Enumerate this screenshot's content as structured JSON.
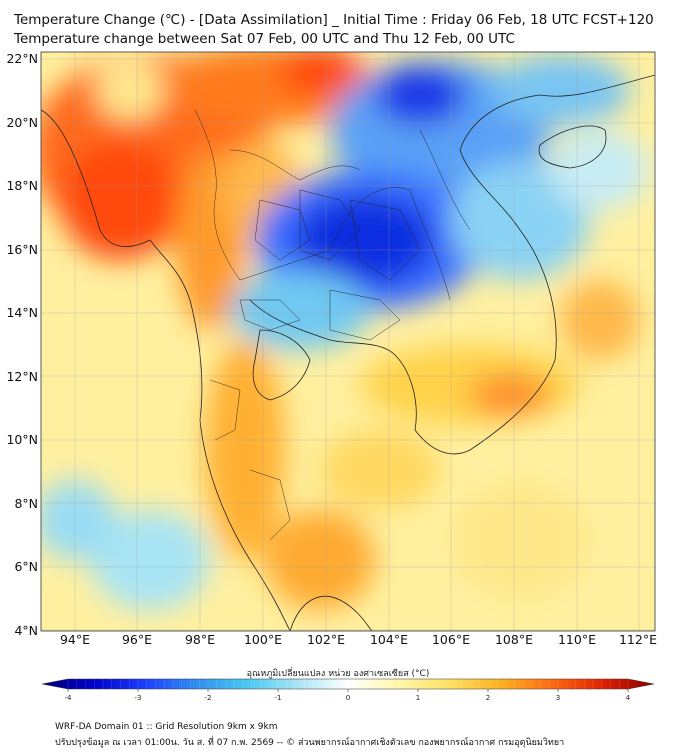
{
  "title_line1": "Temperature Change (℃) - [Data Assimilation] _ Initial Time : Friday 06 Feb, 18 UTC FCST+120",
  "title_line2": "Temperature change between Sat 07 Feb, 00 UTC and Thu 12 Feb, 00 UTC",
  "lat_labels": [
    "4°N",
    "6°N",
    "8°N",
    "10°N",
    "12°N",
    "14°N",
    "16°N",
    "18°N",
    "20°N",
    "22°N"
  ],
  "lon_labels": [
    "94°E",
    "96°E",
    "98°E",
    "100°E",
    "102°E",
    "104°E",
    "106°E",
    "108°E",
    "110°E",
    "112°E"
  ],
  "colorbar": {
    "title": "อุณหภูมิเปลี่ยนแปลง หน่วย องศาเซลเซียส (°C)",
    "min": -4,
    "max": 4,
    "tick_labels": [
      "-4",
      "-3",
      "-2",
      "-1",
      "0",
      "1",
      "2",
      "3",
      "4"
    ],
    "colors": [
      "#00007a",
      "#0000c8",
      "#1c3cff",
      "#2f8cf0",
      "#48c8f0",
      "#a8e4f4",
      "#ffffff",
      "#fff6a8",
      "#ffe060",
      "#ffb020",
      "#ff6a10",
      "#e02000",
      "#8c0000"
    ]
  },
  "field_colors": {
    "warm_deep": "#ff4a1a",
    "warm": "#ffa424",
    "yellow": "#ffd84a",
    "pale_yellow": "#fff5a6",
    "cyan": "#58c8f0",
    "blue": "#2f6cff",
    "deep_blue": "#0a22d8"
  },
  "footer_line1": "WRF-DA Domain 01 :: Grid Resolution 9km x 9km",
  "footer_line2": "ปรับปรุงข้อมูล ณ เวลา 01:00น. วัน ส. ที่ 07 ก.พ. 2569 -- © ส่วนพยากรณ์อากาศเชิงตัวเลข กองพยากรณ์อากาศ กรมอุตุนิยมวิทยา"
}
